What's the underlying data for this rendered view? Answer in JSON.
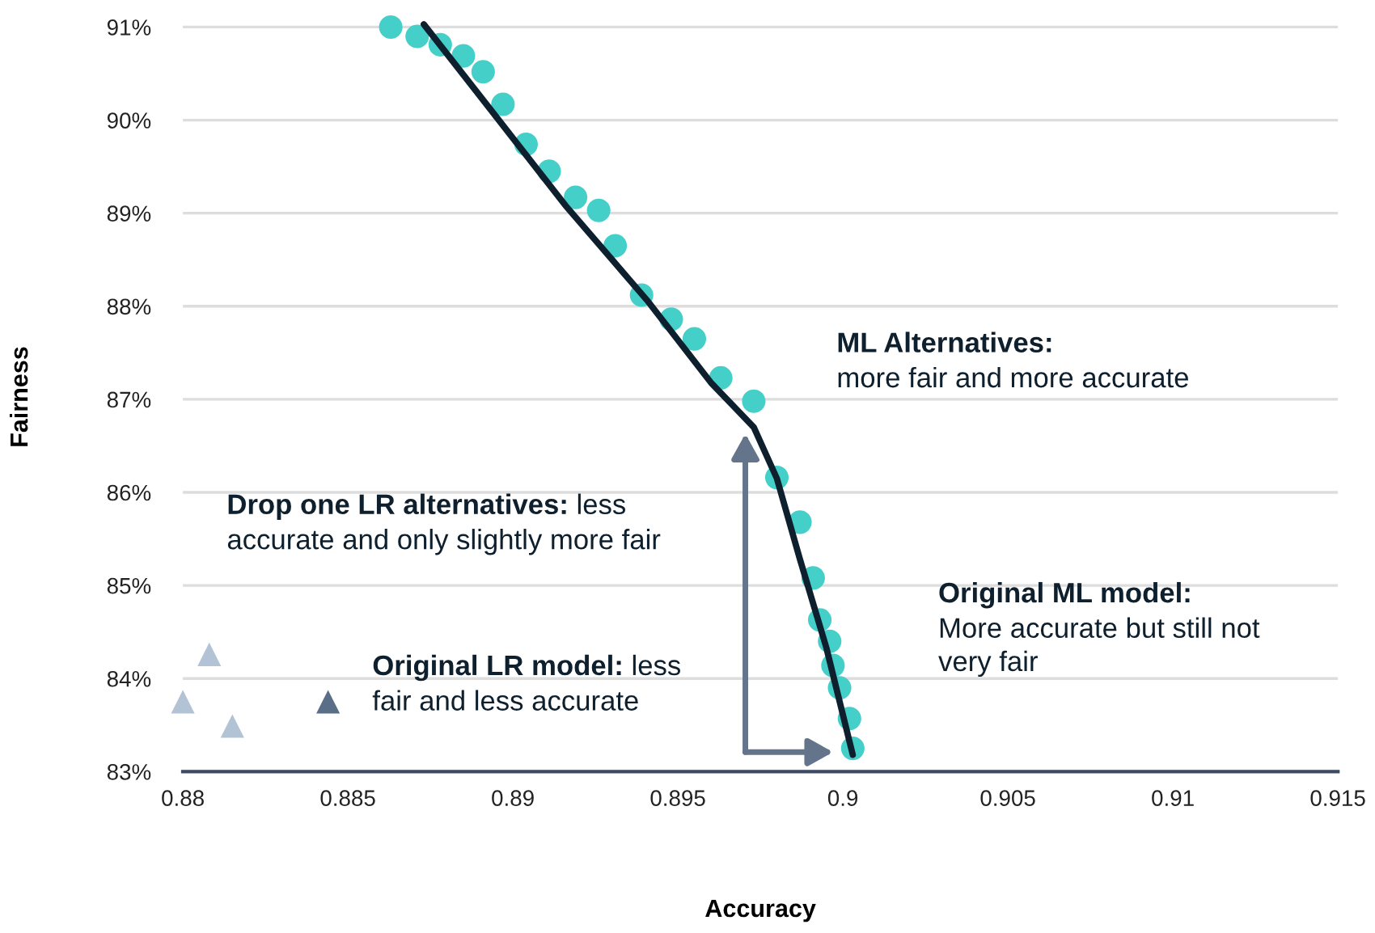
{
  "chart_data": {
    "type": "scatter",
    "xlabel": "Accuracy",
    "ylabel": "Fairness",
    "xlim": [
      0.88,
      0.915
    ],
    "xticks": [
      0.88,
      0.885,
      0.89,
      0.895,
      0.9,
      0.905,
      0.91,
      0.915
    ],
    "ylim": [
      83,
      91.05
    ],
    "yticks": [
      {
        "value": 83,
        "label": "83%"
      },
      {
        "value": 84,
        "label": "84%"
      },
      {
        "value": 85,
        "label": "85%"
      },
      {
        "value": 86,
        "label": "86%"
      },
      {
        "value": 87,
        "label": "87%"
      },
      {
        "value": 88,
        "label": "88%"
      },
      {
        "value": 89,
        "label": "89%"
      },
      {
        "value": 90,
        "label": "90%"
      },
      {
        "value": 91,
        "label": "91%"
      }
    ],
    "grid": "y",
    "legend": false,
    "series": [
      {
        "marker": "circle",
        "color": "#45cfc9",
        "x": [
          0.8863,
          0.8871,
          0.8878,
          0.8885,
          0.8891,
          0.8897,
          0.8904,
          0.8911,
          0.8919,
          0.8926,
          0.8931,
          0.8939,
          0.8948,
          0.8955,
          0.8963,
          0.8973,
          0.898,
          0.8987,
          0.8991,
          0.8993,
          0.8996,
          0.8997,
          0.8999,
          0.9002,
          0.9003
        ],
        "values": [
          91.0,
          90.9,
          90.81,
          90.69,
          90.52,
          90.17,
          89.74,
          89.45,
          89.17,
          89.03,
          88.65,
          88.12,
          87.86,
          87.65,
          87.23,
          86.98,
          86.16,
          85.68,
          85.08,
          84.63,
          84.4,
          84.14,
          83.9,
          83.57,
          83.25
        ]
      },
      {
        "type": "line",
        "marker": "none",
        "color": "#0e1f2e",
        "x": [
          0.8873,
          0.8892,
          0.8916,
          0.8941,
          0.896,
          0.8973,
          0.898,
          0.8987,
          0.8995,
          0.9003
        ],
        "values": [
          91.03,
          90.17,
          89.08,
          88.05,
          87.18,
          86.7,
          86.15,
          85.28,
          84.33,
          83.18
        ]
      },
      {
        "marker": "triangle",
        "color": "#b3c3d6",
        "x": [
          0.8808,
          0.88,
          0.8815
        ],
        "values": [
          84.26,
          83.75,
          83.49
        ]
      },
      {
        "marker": "triangle",
        "color": "#5a6e87",
        "x": [
          0.8844
        ],
        "values": [
          83.75
        ]
      }
    ],
    "annotations": [
      "ML Alternatives:\nmore fair and more accurate",
      "Drop one LR alternatives: less\naccurate and only slightly more fair",
      "Original ML model:\nMore accurate but still not\nvery fair",
      "Original LR model: less\nfair and less accurate"
    ]
  }
}
